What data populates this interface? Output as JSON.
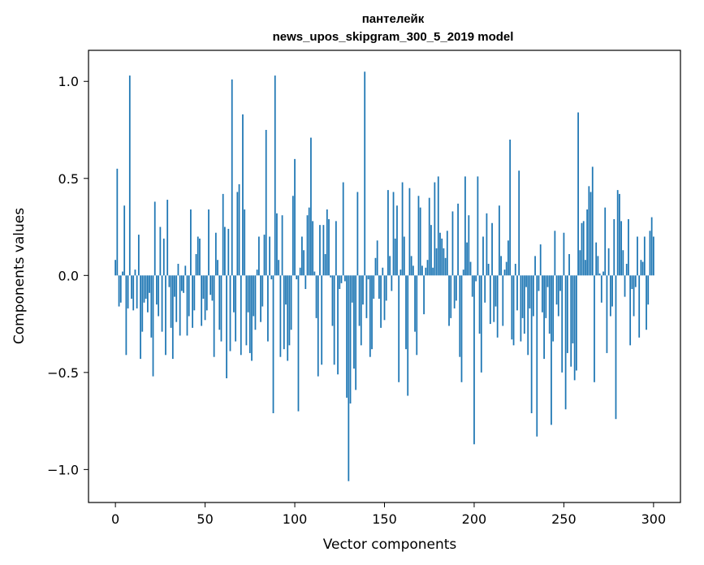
{
  "chart_data": {
    "type": "bar",
    "title": "пантелейк",
    "subtitle": "news_upos_skipgram_300_5_2019 model",
    "xlabel": "Vector components",
    "ylabel": "Components values",
    "xlim": [
      -15,
      315
    ],
    "ylim": [
      -1.17,
      1.16
    ],
    "xticks": [
      0,
      50,
      100,
      150,
      200,
      250,
      300
    ],
    "xtick_labels": [
      "0",
      "50",
      "100",
      "150",
      "200",
      "250",
      "300"
    ],
    "yticks": [
      -1.0,
      -0.5,
      0.0,
      0.5,
      1.0
    ],
    "ytick_labels": [
      "−1.0",
      "−0.5",
      "0.0",
      "0.5",
      "1.0"
    ],
    "bar_color": "#1f77b4",
    "grid": false,
    "legend": "none",
    "x_start": 0,
    "values": [
      0.08,
      0.55,
      -0.16,
      -0.14,
      0.02,
      0.36,
      -0.41,
      -0.17,
      1.03,
      -0.12,
      -0.18,
      0.03,
      -0.17,
      0.21,
      -0.43,
      -0.29,
      -0.14,
      -0.12,
      -0.19,
      -0.09,
      -0.32,
      -0.52,
      0.38,
      -0.15,
      -0.21,
      0.25,
      -0.29,
      0.19,
      -0.41,
      0.39,
      -0.06,
      -0.27,
      -0.43,
      -0.11,
      -0.24,
      0.06,
      -0.31,
      -0.08,
      -0.09,
      0.05,
      -0.31,
      -0.21,
      0.34,
      -0.27,
      -0.18,
      0.11,
      0.2,
      0.19,
      -0.26,
      -0.12,
      -0.23,
      -0.18,
      0.34,
      -0.1,
      -0.13,
      -0.42,
      0.22,
      0.08,
      -0.28,
      -0.34,
      0.42,
      0.25,
      -0.53,
      0.24,
      -0.39,
      1.01,
      -0.19,
      -0.34,
      0.43,
      0.47,
      -0.41,
      0.83,
      0.34,
      -0.36,
      -0.19,
      -0.4,
      -0.44,
      -0.21,
      -0.28,
      0.03,
      0.2,
      -0.24,
      -0.16,
      0.21,
      0.75,
      -0.34,
      0.2,
      -0.02,
      -0.71,
      1.03,
      0.32,
      0.08,
      -0.42,
      0.31,
      -0.38,
      -0.15,
      -0.44,
      -0.36,
      -0.28,
      0.41,
      0.6,
      -0.02,
      -0.7,
      0.04,
      0.2,
      0.13,
      -0.07,
      0.31,
      0.35,
      0.71,
      0.28,
      0.02,
      -0.22,
      -0.52,
      0.26,
      -0.46,
      0.26,
      0.11,
      0.34,
      0.29,
      -0.01,
      -0.26,
      -0.46,
      0.28,
      -0.51,
      -0.07,
      -0.04,
      0.48,
      -0.03,
      -0.63,
      -1.06,
      -0.66,
      -0.14,
      -0.48,
      -0.59,
      0.43,
      -0.26,
      -0.36,
      -0.15,
      1.05,
      -0.22,
      -0.02,
      -0.42,
      -0.38,
      -0.12,
      0.09,
      0.18,
      -0.12,
      -0.27,
      0.04,
      -0.23,
      -0.13,
      0.44,
      0.1,
      -0.08,
      0.43,
      0.19,
      0.36,
      -0.55,
      0.03,
      0.48,
      0.2,
      -0.38,
      -0.62,
      0.45,
      0.1,
      0.05,
      -0.29,
      -0.41,
      0.41,
      0.35,
      0.05,
      -0.2,
      0.04,
      0.08,
      0.4,
      0.26,
      0.04,
      0.48,
      0.14,
      0.51,
      0.22,
      0.19,
      0.14,
      0.09,
      0.23,
      -0.26,
      -0.22,
      0.33,
      -0.17,
      -0.13,
      0.37,
      -0.42,
      -0.55,
      0.03,
      0.51,
      0.17,
      0.31,
      0.07,
      -0.11,
      -0.87,
      -0.03,
      0.51,
      -0.3,
      -0.5,
      0.2,
      -0.14,
      0.32,
      0.06,
      -0.25,
      0.27,
      -0.24,
      -0.16,
      -0.32,
      0.36,
      0.1,
      -0.26,
      0.03,
      0.07,
      0.18,
      0.7,
      -0.33,
      -0.36,
      0.06,
      -0.18,
      0.54,
      -0.34,
      -0.22,
      -0.3,
      -0.06,
      -0.41,
      -0.17,
      -0.71,
      -0.21,
      0.1,
      -0.83,
      -0.08,
      0.16,
      -0.19,
      -0.43,
      -0.22,
      -0.06,
      -0.3,
      -0.77,
      -0.34,
      0.23,
      -0.15,
      -0.21,
      -0.08,
      -0.5,
      0.22,
      -0.69,
      -0.4,
      0.11,
      -0.47,
      -0.35,
      -0.54,
      -0.49,
      0.84,
      0.13,
      0.27,
      0.28,
      0.08,
      0.34,
      0.46,
      0.43,
      0.56,
      -0.55,
      0.17,
      0.1,
      0.01,
      -0.14,
      0.02,
      0.35,
      -0.4,
      0.14,
      -0.21,
      -0.16,
      0.29,
      -0.74,
      0.44,
      0.42,
      0.28,
      0.13,
      -0.11,
      0.06,
      0.29,
      -0.36,
      -0.07,
      -0.21,
      -0.06,
      0.2,
      -0.32,
      0.08,
      0.07,
      0.2,
      -0.28,
      -0.15,
      0.23,
      0.3,
      0.2
    ]
  }
}
